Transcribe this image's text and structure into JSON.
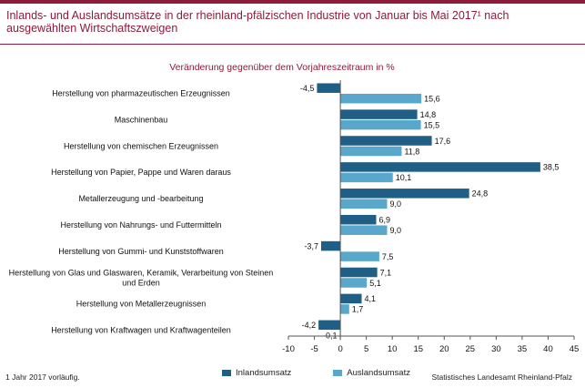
{
  "title": "Inlands- und Auslandsumsätze in der rheinland-pfälzischen Industrie von Januar bis Mai 2017¹ nach ausgewählten Wirtschaftszweigen",
  "footnote": "1 Jahr 2017 vorläufig.",
  "source": "Statistisches Landesamt Rheinland-Pfalz",
  "colors": {
    "accent": "#8c1c3a",
    "inland": "#1f5f86",
    "ausland": "#5aa7cc"
  },
  "chart_data": {
    "type": "bar",
    "orientation": "horizontal",
    "title": "Veränderung gegenüber dem Vorjahreszeitraum in %",
    "categories": [
      "Herstellung von pharmazeutischen Erzeugnissen",
      "Maschinenbau",
      "Herstellung von chemischen Erzeugnissen",
      "Herstellung von Papier, Pappe und Waren daraus",
      "Metallerzeugung und -bearbeitung",
      "Herstellung von Nahrungs- und Futtermitteln",
      "Herstellung von Gummi- und Kunststoffwaren",
      "Herstellung von Glas und Glaswaren, Keramik, Verarbeitung von Steinen und Erden",
      "Herstellung von Metallerzeugnissen",
      "Herstellung von Kraftwagen und Kraftwagenteilen"
    ],
    "series": [
      {
        "name": "Inlandsumsatz",
        "color": "#1f5f86",
        "values": [
          -4.5,
          14.8,
          17.6,
          38.5,
          24.8,
          6.9,
          -3.7,
          7.1,
          4.1,
          -4.2
        ],
        "labels": [
          "-4,5",
          "14,8",
          "17,6",
          "38,5",
          "24,8",
          "6,9",
          "-3,7",
          "7,1",
          "4,1",
          "-4,2"
        ]
      },
      {
        "name": "Auslandsumsatz",
        "color": "#5aa7cc",
        "values": [
          15.6,
          15.5,
          11.8,
          10.1,
          9.0,
          9.0,
          7.5,
          5.1,
          1.7,
          -0.1
        ],
        "labels": [
          "15,6",
          "15,5",
          "11,8",
          "10,1",
          "9,0",
          "9,0",
          "7,5",
          "5,1",
          "1,7",
          "-0,1"
        ]
      }
    ],
    "xlim": [
      -10,
      45
    ],
    "xticks": [
      -10,
      -5,
      0,
      5,
      10,
      15,
      20,
      25,
      30,
      35,
      40,
      45
    ],
    "legend": "bottom",
    "grid": false
  }
}
